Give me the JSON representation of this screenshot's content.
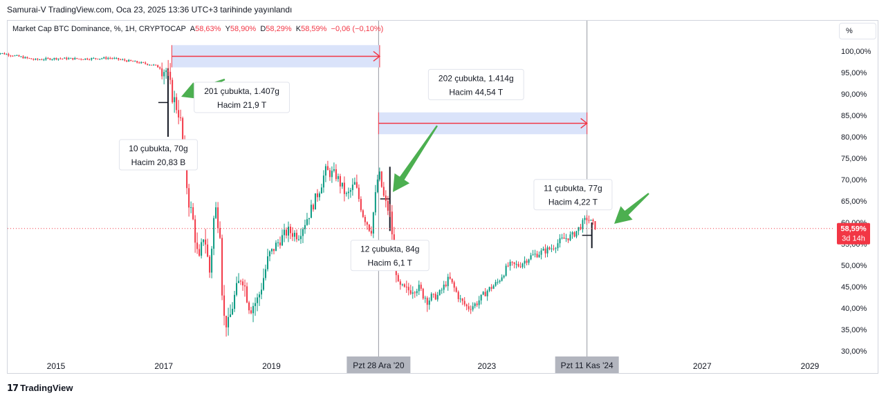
{
  "published_by": "Samurai-V TradingView.com, Oca 23, 2025 13:36 UTC+3 tarihinde yayınlandı",
  "legend": {
    "symbol": "Market Cap BTC Dominance, %, 1H, CRYPTOCAP",
    "o_key": "A",
    "o_val": "58,63%",
    "h_key": "Y",
    "h_val": "58,90%",
    "l_key": "D",
    "l_val": "58,29%",
    "c_key": "K",
    "c_val": "58,59%",
    "change": "−0,06 (−0,10%)"
  },
  "scale_button": "%",
  "price_badge": {
    "value": "58,59%",
    "countdown": "3d 14h"
  },
  "footer": {
    "brand": "TradingView",
    "logo": "tradingview-logo"
  },
  "colors": {
    "up": "#089981",
    "down": "#f23645",
    "measure_fill": "#d6e0f9",
    "measure_line": "#f23645",
    "arrow": "#4caf50"
  },
  "chart_data": {
    "type": "candlestick",
    "title": "Market Cap BTC Dominance, %, 1H, CRYPTOCAP",
    "ylim": [
      30,
      100
    ],
    "xlim": [
      2013.7,
      2029.8
    ],
    "y_ticks": [
      "100,00%",
      "95,00%",
      "90,00%",
      "85,00%",
      "80,00%",
      "75,00%",
      "70,00%",
      "65,00%",
      "60,00%",
      "55,00%",
      "50,00%",
      "45,00%",
      "40,00%",
      "35,00%",
      "30,00%"
    ],
    "x_ticks": [
      "2015",
      "2017",
      "2019",
      "2023",
      "2027",
      "2029"
    ],
    "x_tick_years": [
      2015,
      2017,
      2019,
      2023,
      2027,
      2029
    ],
    "crosshair_labels": [
      "Pzt 28 Ara '20",
      "Pzt 11 Kas '24"
    ],
    "crosshair_years": [
      2020.99,
      2024.86
    ],
    "last_value": 58.59,
    "series": [
      {
        "path": [
          [
            2013.85,
            99.8
          ],
          [
            2014.2,
            99.0
          ],
          [
            2014.6,
            98.0
          ],
          [
            2015.0,
            98.3
          ],
          [
            2015.5,
            98.2
          ],
          [
            2016.0,
            98.4
          ],
          [
            2016.2,
            98.0
          ],
          [
            2016.6,
            97.2
          ],
          [
            2016.8,
            96.8
          ],
          [
            2017.05,
            95.5
          ],
          [
            2017.15,
            90
          ],
          [
            2017.3,
            85
          ],
          [
            2017.38,
            75
          ],
          [
            2017.45,
            66
          ],
          [
            2017.55,
            60
          ],
          [
            2017.65,
            50
          ],
          [
            2017.75,
            58
          ],
          [
            2017.85,
            48
          ],
          [
            2017.95,
            64
          ],
          [
            2018.05,
            58
          ],
          [
            2018.1,
            38
          ],
          [
            2018.2,
            36
          ],
          [
            2018.3,
            42
          ],
          [
            2018.45,
            48
          ],
          [
            2018.6,
            40
          ],
          [
            2018.75,
            42
          ],
          [
            2018.95,
            52
          ],
          [
            2019.1,
            55
          ],
          [
            2019.3,
            58
          ],
          [
            2019.5,
            57
          ],
          [
            2019.7,
            62
          ],
          [
            2019.9,
            68
          ],
          [
            2020.0,
            72
          ],
          [
            2020.2,
            71
          ],
          [
            2020.4,
            66
          ],
          [
            2020.55,
            69
          ],
          [
            2020.7,
            62
          ],
          [
            2020.85,
            58
          ],
          [
            2020.99,
            72
          ],
          [
            2021.1,
            65
          ],
          [
            2021.2,
            62
          ],
          [
            2021.35,
            45
          ],
          [
            2021.5,
            44
          ],
          [
            2021.7,
            45
          ],
          [
            2021.9,
            42
          ],
          [
            2022.1,
            43
          ],
          [
            2022.3,
            47
          ],
          [
            2022.5,
            42
          ],
          [
            2022.65,
            40
          ],
          [
            2022.8,
            41
          ],
          [
            2023.0,
            44
          ],
          [
            2023.2,
            46
          ],
          [
            2023.4,
            50
          ],
          [
            2023.6,
            50
          ],
          [
            2023.8,
            52
          ],
          [
            2024.0,
            53
          ],
          [
            2024.2,
            54
          ],
          [
            2024.4,
            56
          ],
          [
            2024.6,
            57
          ],
          [
            2024.86,
            61
          ],
          [
            2025.05,
            58.6
          ]
        ]
      }
    ],
    "annotations": [
      {
        "type": "date-price-range",
        "x0": 2017.15,
        "x1": 2021.01,
        "y0": 96.2,
        "y1": 101.4,
        "label_lines": [
          "201 çubukta, 1.407g",
          "Hacim 21,9 T"
        ],
        "label_x": 2018.45,
        "label_y": 89.2
      },
      {
        "type": "date-price-range",
        "x0": 2020.99,
        "x1": 2024.86,
        "y0": 80.6,
        "y1": 85.7,
        "label_lines": [
          "202 çubukta, 1.414g",
          "Hacim 44,54 T"
        ],
        "label_x": 2022.8,
        "label_y": 92.2
      },
      {
        "type": "measure-label",
        "label_lines": [
          "10 çubukta, 70g",
          "Hacim 20,83 B"
        ],
        "label_x": 2016.9,
        "label_y": 75.8
      },
      {
        "type": "measure-label",
        "label_lines": [
          "12 çubukta, 84g",
          "Hacim 6,1 T"
        ],
        "label_x": 2021.2,
        "label_y": 52.3
      },
      {
        "type": "measure-label",
        "label_lines": [
          "11 çubukta, 77g",
          "Hacim 4,22 T"
        ],
        "label_x": 2024.6,
        "label_y": 66.5
      }
    ]
  }
}
